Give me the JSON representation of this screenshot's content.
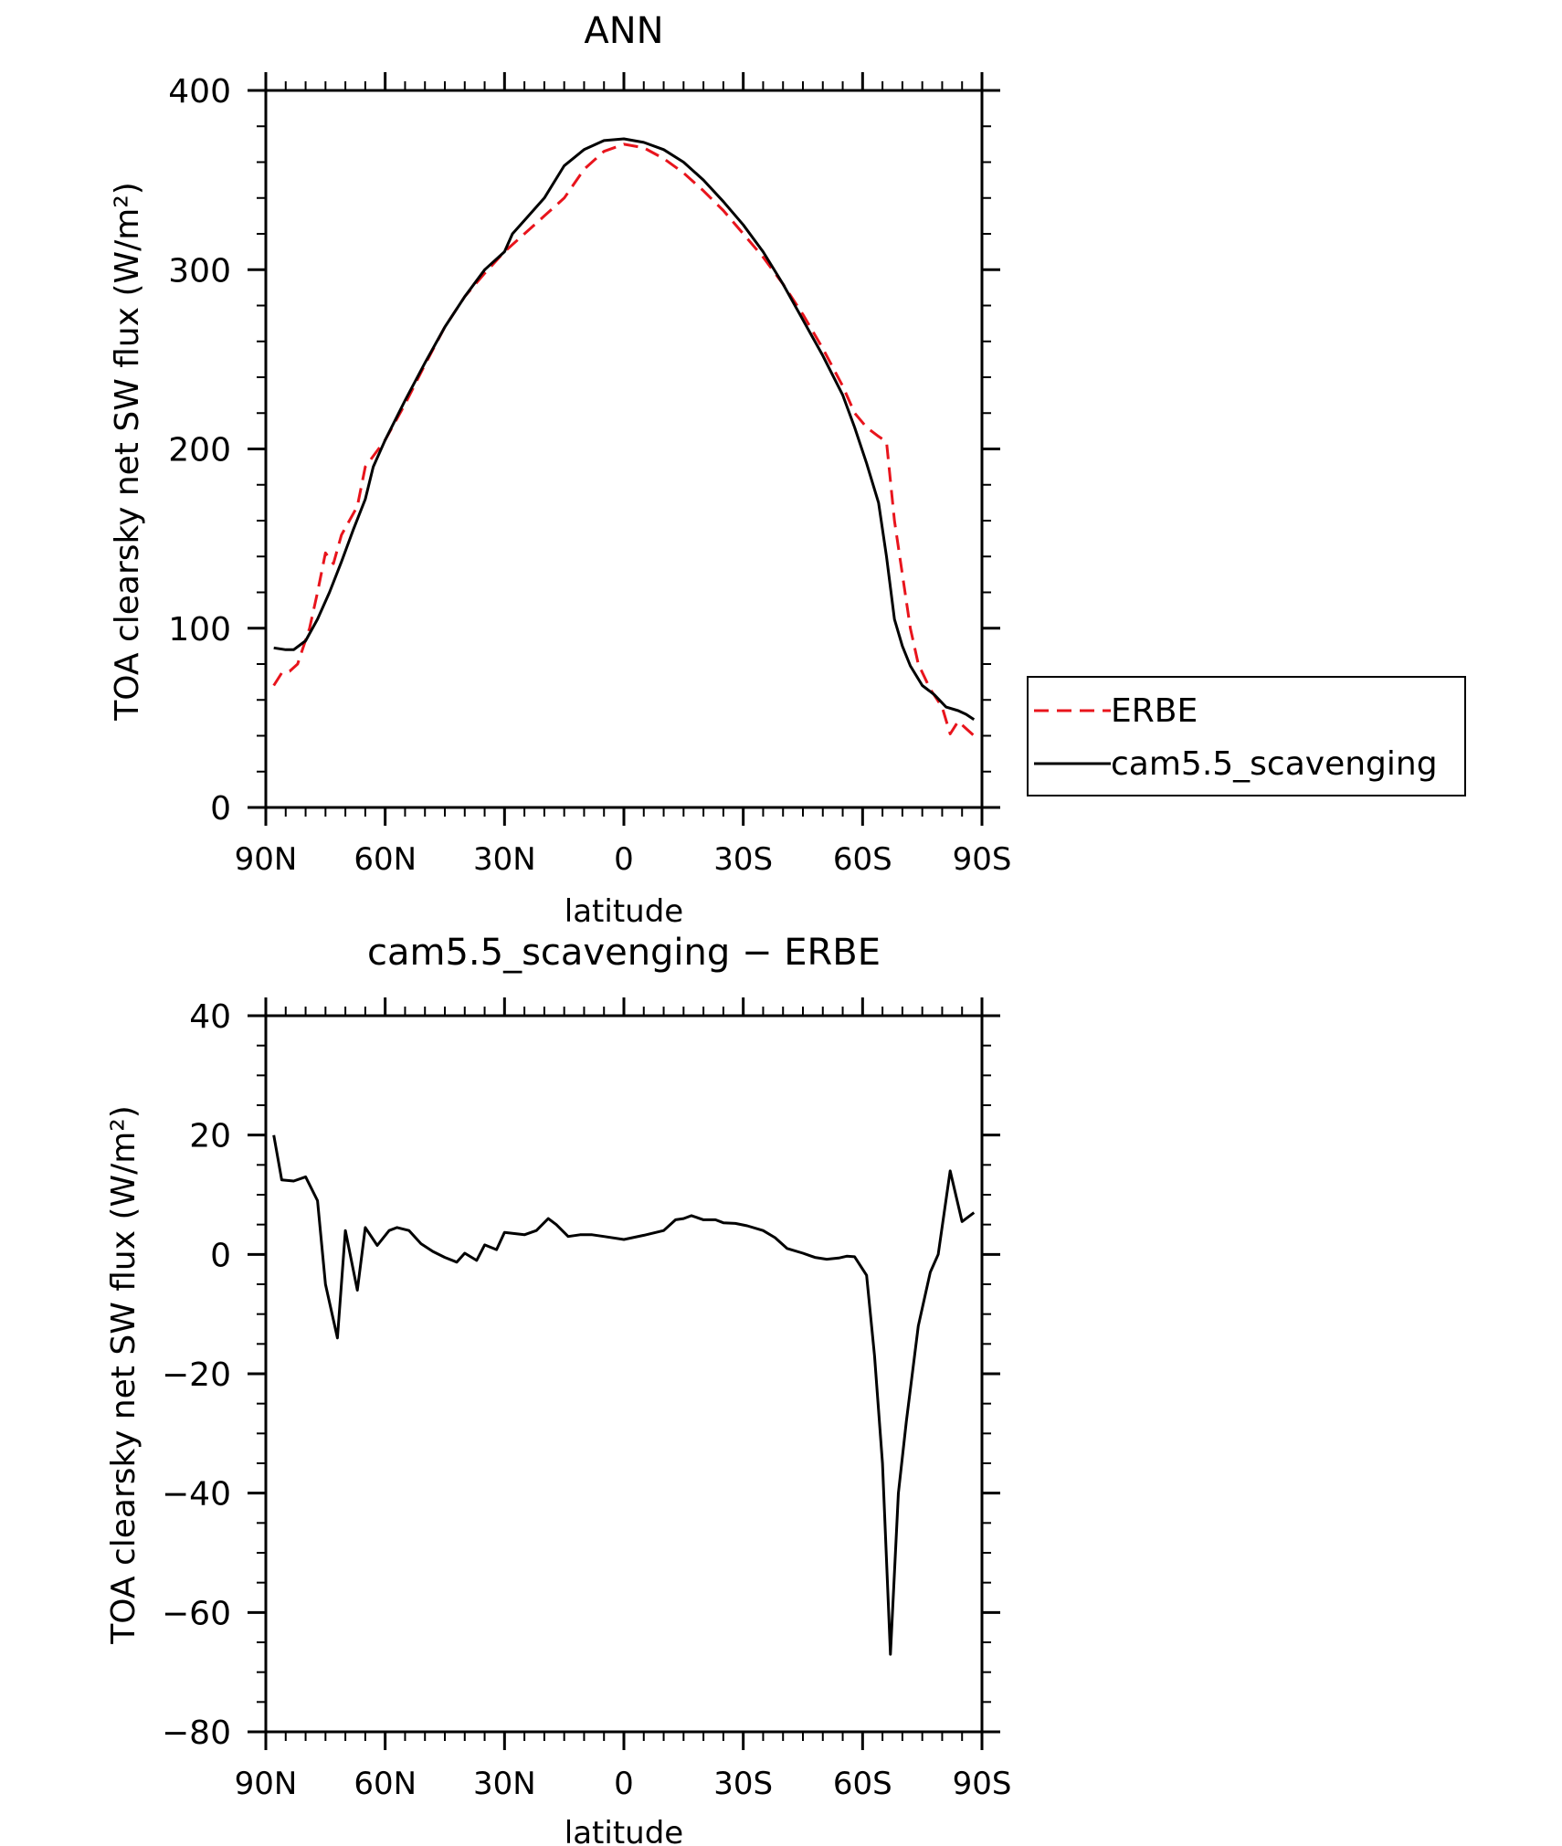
{
  "chart_data": [
    {
      "type": "line",
      "title": "ANN",
      "xlabel": "latitude",
      "ylabel": "TOA clearsky net SW flux (W/m²)",
      "xlim": [
        90,
        -90
      ],
      "ylim": [
        0,
        400
      ],
      "xticks": [
        {
          "value": 90,
          "label": "90N"
        },
        {
          "value": 60,
          "label": "60N"
        },
        {
          "value": 30,
          "label": "30N"
        },
        {
          "value": 0,
          "label": "0"
        },
        {
          "value": -30,
          "label": "30S"
        },
        {
          "value": -60,
          "label": "60S"
        },
        {
          "value": -90,
          "label": "90S"
        }
      ],
      "yticks": [
        {
          "value": 0,
          "label": "0"
        },
        {
          "value": 100,
          "label": "100"
        },
        {
          "value": 200,
          "label": "200"
        },
        {
          "value": 300,
          "label": "300"
        },
        {
          "value": 400,
          "label": "400"
        }
      ],
      "legend_position": "right",
      "series": [
        {
          "name": "ERBE",
          "color": "#e8141c",
          "dash": true,
          "points": [
            [
              88,
              68
            ],
            [
              86,
              75
            ],
            [
              84,
              76
            ],
            [
              82,
              80
            ],
            [
              79,
              100
            ],
            [
              77,
              120
            ],
            [
              75,
              142
            ],
            [
              73,
              136
            ],
            [
              71,
              152
            ],
            [
              69,
              160
            ],
            [
              67,
              168
            ],
            [
              65,
              190
            ],
            [
              60,
              205
            ],
            [
              55,
              225
            ],
            [
              50,
              247
            ],
            [
              45,
              268
            ],
            [
              40,
              285
            ],
            [
              35,
              298
            ],
            [
              30,
              310
            ],
            [
              25,
              320
            ],
            [
              20,
              330
            ],
            [
              15,
              340
            ],
            [
              10,
              356
            ],
            [
              5,
              366
            ],
            [
              0,
              370
            ],
            [
              -5,
              368
            ],
            [
              -10,
              362
            ],
            [
              -15,
              354
            ],
            [
              -20,
              344
            ],
            [
              -25,
              333
            ],
            [
              -30,
              320
            ],
            [
              -35,
              307
            ],
            [
              -40,
              292
            ],
            [
              -45,
              275
            ],
            [
              -50,
              256
            ],
            [
              -55,
              235
            ],
            [
              -58,
              220
            ],
            [
              -61,
              212
            ],
            [
              -64,
              207
            ],
            [
              -66,
              204
            ],
            [
              -68,
              160
            ],
            [
              -70,
              130
            ],
            [
              -72,
              100
            ],
            [
              -74,
              80
            ],
            [
              -77,
              66
            ],
            [
              -80,
              56
            ],
            [
              -82,
              41
            ],
            [
              -84,
              48
            ],
            [
              -86,
              44
            ],
            [
              -88,
              40
            ]
          ]
        },
        {
          "name": "cam5.5_scavenging",
          "color": "#000000",
          "dash": false,
          "points": [
            [
              88,
              89
            ],
            [
              85,
              88
            ],
            [
              83,
              88
            ],
            [
              80,
              93
            ],
            [
              77,
              105
            ],
            [
              74,
              120
            ],
            [
              71,
              137
            ],
            [
              68,
              155
            ],
            [
              65,
              172
            ],
            [
              63,
              190
            ],
            [
              60,
              205
            ],
            [
              55,
              227
            ],
            [
              50,
              248
            ],
            [
              45,
              268
            ],
            [
              40,
              285
            ],
            [
              35,
              300
            ],
            [
              30,
              310
            ],
            [
              28,
              320
            ],
            [
              24,
              330
            ],
            [
              20,
              340
            ],
            [
              15,
              358
            ],
            [
              10,
              367
            ],
            [
              5,
              372
            ],
            [
              0,
              373
            ],
            [
              -5,
              371
            ],
            [
              -10,
              367
            ],
            [
              -15,
              360
            ],
            [
              -20,
              350
            ],
            [
              -25,
              338
            ],
            [
              -30,
              325
            ],
            [
              -35,
              310
            ],
            [
              -40,
              292
            ],
            [
              -45,
              272
            ],
            [
              -50,
              252
            ],
            [
              -55,
              230
            ],
            [
              -58,
              212
            ],
            [
              -61,
              192
            ],
            [
              -64,
              170
            ],
            [
              -66,
              140
            ],
            [
              -68,
              105
            ],
            [
              -70,
              90
            ],
            [
              -72,
              79
            ],
            [
              -75,
              68
            ],
            [
              -78,
              63
            ],
            [
              -81,
              56
            ],
            [
              -84,
              54
            ],
            [
              -86,
              52
            ],
            [
              -88,
              49
            ]
          ]
        }
      ]
    },
    {
      "type": "line",
      "title": "cam5.5_scavenging − ERBE",
      "xlabel": "latitude",
      "ylabel": "TOA clearsky net SW flux (W/m²)",
      "xlim": [
        90,
        -90
      ],
      "ylim": [
        -80,
        40
      ],
      "xticks": [
        {
          "value": 90,
          "label": "90N"
        },
        {
          "value": 60,
          "label": "60N"
        },
        {
          "value": 30,
          "label": "30N"
        },
        {
          "value": 0,
          "label": "0"
        },
        {
          "value": -30,
          "label": "30S"
        },
        {
          "value": -60,
          "label": "60S"
        },
        {
          "value": -90,
          "label": "90S"
        }
      ],
      "yticks": [
        {
          "value": -80,
          "label": "−80"
        },
        {
          "value": -60,
          "label": "−60"
        },
        {
          "value": -40,
          "label": "−40"
        },
        {
          "value": -20,
          "label": "−20"
        },
        {
          "value": 0,
          "label": "0"
        },
        {
          "value": 20,
          "label": "20"
        },
        {
          "value": 40,
          "label": "40"
        }
      ],
      "series": [
        {
          "color": "#000000",
          "dash": false,
          "points": [
            [
              88,
              20
            ],
            [
              86,
              12.5
            ],
            [
              83,
              12.3
            ],
            [
              80,
              13
            ],
            [
              77,
              9
            ],
            [
              75,
              -5
            ],
            [
              72,
              -14
            ],
            [
              70,
              4
            ],
            [
              67,
              -6
            ],
            [
              65,
              4.5
            ],
            [
              62,
              1.5
            ],
            [
              59,
              4
            ],
            [
              57,
              4.5
            ],
            [
              54,
              4
            ],
            [
              51,
              1.8
            ],
            [
              48,
              0.5
            ],
            [
              45,
              -0.5
            ],
            [
              42,
              -1.3
            ],
            [
              40,
              0.2
            ],
            [
              37,
              -1
            ],
            [
              35,
              1.6
            ],
            [
              32,
              0.8
            ],
            [
              30,
              3.7
            ],
            [
              25,
              3.3
            ],
            [
              22,
              4
            ],
            [
              19,
              6
            ],
            [
              17,
              5
            ],
            [
              14,
              3
            ],
            [
              11,
              3.3
            ],
            [
              8,
              3.3
            ],
            [
              5,
              3
            ],
            [
              0,
              2.5
            ],
            [
              -5,
              3.2
            ],
            [
              -10,
              4
            ],
            [
              -13,
              5.8
            ],
            [
              -15,
              6
            ],
            [
              -17,
              6.5
            ],
            [
              -20,
              5.8
            ],
            [
              -23,
              5.8
            ],
            [
              -25,
              5.3
            ],
            [
              -28,
              5.2
            ],
            [
              -31,
              4.8
            ],
            [
              -35,
              4
            ],
            [
              -38,
              2.8
            ],
            [
              -41,
              1
            ],
            [
              -45,
              0.2
            ],
            [
              -48,
              -0.5
            ],
            [
              -51,
              -0.8
            ],
            [
              -54,
              -0.6
            ],
            [
              -56,
              -0.3
            ],
            [
              -58,
              -0.4
            ],
            [
              -61,
              -3.5
            ],
            [
              -63,
              -17
            ],
            [
              -65,
              -35
            ],
            [
              -67,
              -67
            ],
            [
              -69,
              -40
            ],
            [
              -71,
              -28
            ],
            [
              -74,
              -12
            ],
            [
              -77,
              -3
            ],
            [
              -79,
              0
            ],
            [
              -82,
              14
            ],
            [
              -85,
              5.5
            ],
            [
              -88,
              7
            ]
          ]
        }
      ]
    }
  ]
}
